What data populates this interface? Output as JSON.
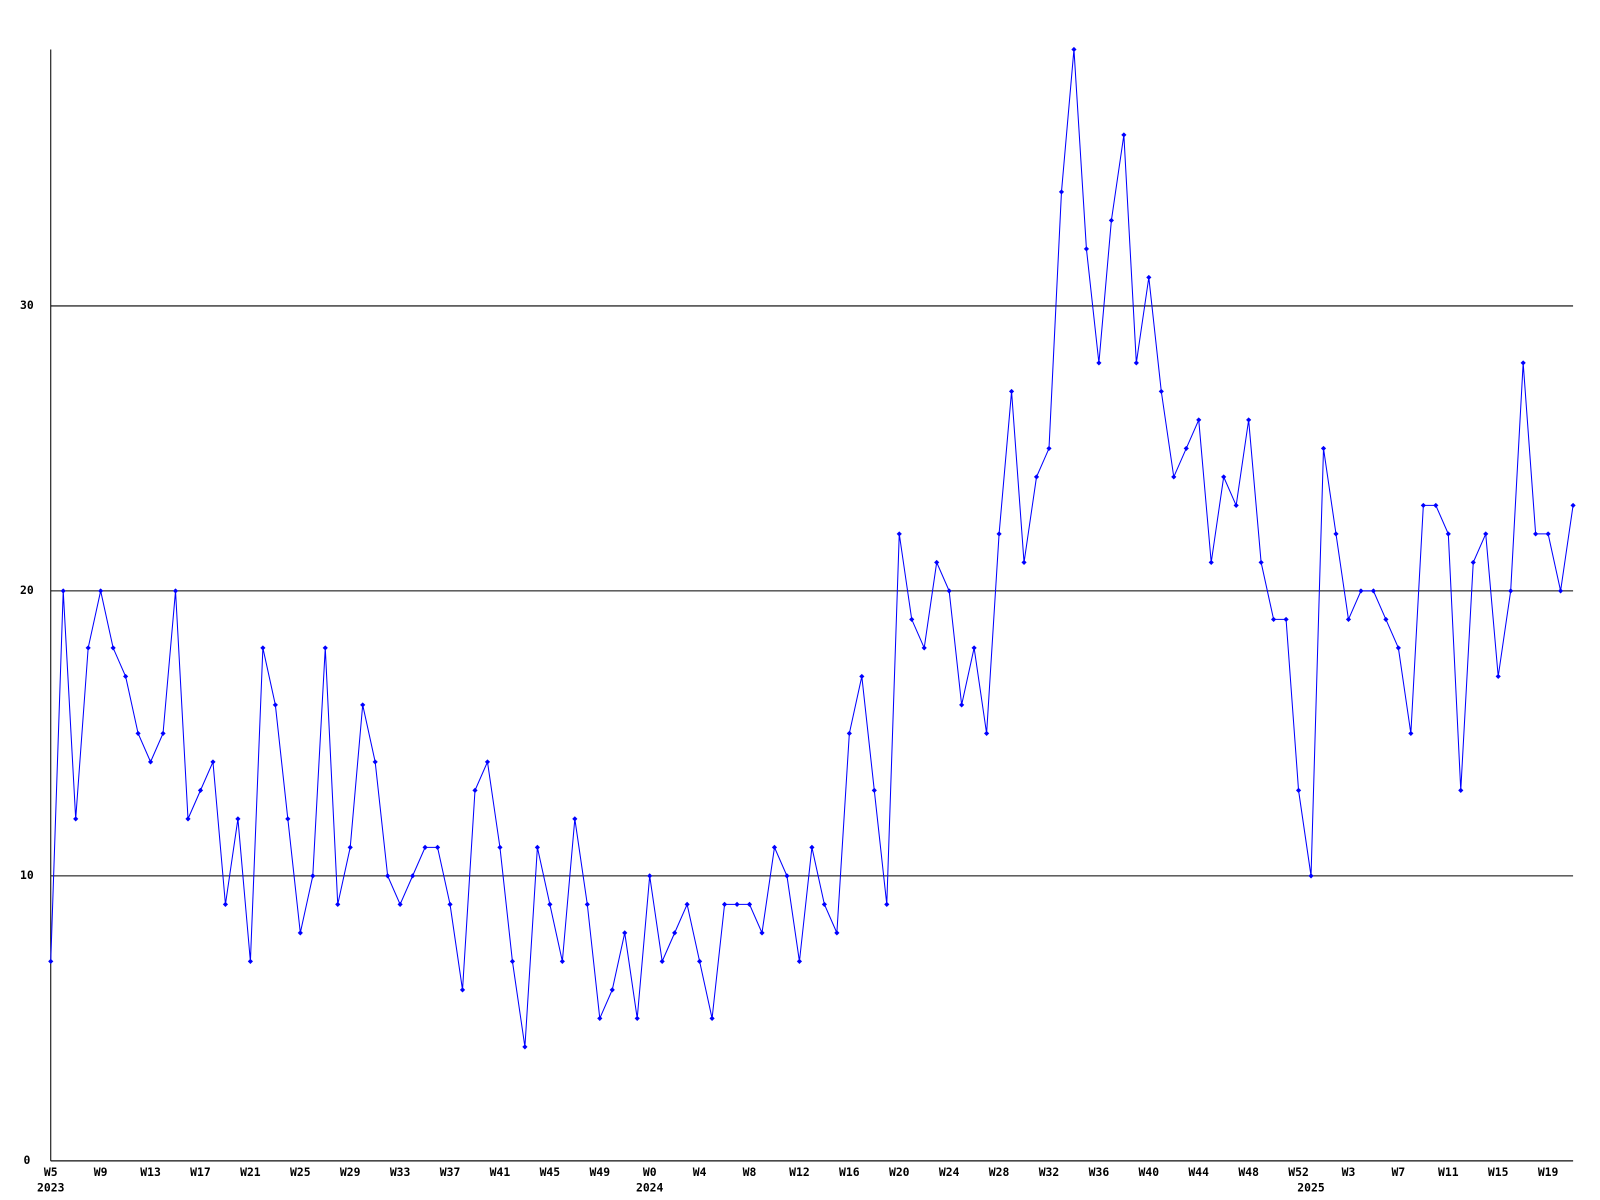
{
  "chart_data": {
    "type": "line",
    "categories": [
      "W5",
      null,
      null,
      null,
      "W9",
      null,
      null,
      null,
      "W13",
      null,
      null,
      null,
      "W17",
      null,
      null,
      null,
      "W21",
      null,
      null,
      null,
      "W25",
      null,
      null,
      null,
      "W29",
      null,
      null,
      null,
      "W33",
      null,
      null,
      null,
      "W37",
      null,
      null,
      null,
      "W41",
      null,
      null,
      null,
      "W45",
      null,
      null,
      null,
      "W49",
      null,
      null,
      null,
      "W0",
      null,
      null,
      null,
      "W4",
      null,
      null,
      null,
      "W8",
      null,
      null,
      null,
      "W12",
      null,
      null,
      null,
      "W16",
      null,
      null,
      null,
      "W20",
      null,
      null,
      null,
      "W24",
      null,
      null,
      null,
      "W28",
      null,
      null,
      null,
      "W32",
      null,
      null,
      null,
      "W36",
      null,
      null,
      null,
      "W40",
      null,
      null,
      null,
      "W44",
      null,
      null,
      null,
      "W48",
      null,
      null,
      null,
      "W52",
      null,
      null,
      null,
      "W3",
      null,
      null,
      null,
      "W7",
      null,
      null,
      null,
      "W11",
      null,
      null,
      null,
      "W15",
      null,
      null,
      null,
      "W19",
      null,
      null
    ],
    "years": [
      "2023",
      null,
      null,
      null,
      null,
      null,
      null,
      null,
      null,
      null,
      null,
      null,
      null,
      null,
      null,
      null,
      null,
      null,
      null,
      null,
      null,
      null,
      null,
      null,
      null,
      null,
      null,
      null,
      null,
      null,
      null,
      null,
      null,
      null,
      null,
      null,
      null,
      null,
      null,
      null,
      null,
      null,
      null,
      null,
      null,
      null,
      null,
      null,
      "2024",
      null,
      null,
      null,
      null,
      null,
      null,
      null,
      null,
      null,
      null,
      null,
      null,
      null,
      null,
      null,
      null,
      null,
      null,
      null,
      null,
      null,
      null,
      null,
      null,
      null,
      null,
      null,
      null,
      null,
      null,
      null,
      null,
      null,
      null,
      null,
      null,
      null,
      null,
      null,
      null,
      null,
      null,
      null,
      null,
      null,
      null,
      null,
      null,
      null,
      null,
      null,
      null,
      "2025",
      null,
      null,
      null,
      null,
      null,
      null,
      null,
      null,
      null,
      null,
      null,
      null,
      null,
      null,
      null,
      null,
      null,
      null,
      null,
      null,
      null
    ],
    "series": [
      {
        "color": "#0000ff",
        "values": [
          7,
          20,
          12,
          18,
          20,
          18,
          17,
          15,
          14,
          15,
          20,
          12,
          13,
          14,
          9,
          12,
          7,
          18,
          16,
          12,
          8,
          10,
          18,
          9,
          11,
          16,
          14,
          10,
          9,
          10,
          11,
          11,
          9,
          6,
          13,
          14,
          11,
          7,
          4,
          11,
          9,
          7,
          12,
          9,
          5,
          6,
          8,
          5,
          10,
          7,
          8,
          9,
          7,
          5,
          9,
          9,
          9,
          8,
          11,
          10,
          7,
          11,
          9,
          8,
          15,
          17,
          13,
          9,
          22,
          19,
          18,
          21,
          20,
          16,
          18,
          15,
          22,
          27,
          21,
          24,
          25,
          34,
          39,
          32,
          28,
          33,
          36,
          28,
          31,
          27,
          24,
          25,
          26,
          21,
          24,
          23,
          26,
          21,
          19,
          19,
          13,
          10,
          25,
          22,
          19,
          20,
          20,
          19,
          18,
          15,
          23,
          23,
          22,
          13,
          21,
          22,
          17,
          20,
          28,
          22,
          22,
          20,
          23
        ]
      }
    ],
    "ylim": [
      0,
      39
    ],
    "yticks": [
      0,
      10,
      20,
      30
    ],
    "grid": true
  }
}
